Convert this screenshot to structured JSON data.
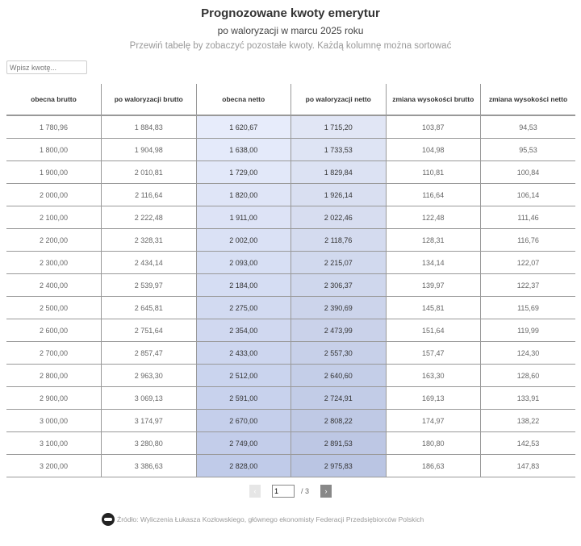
{
  "header": {
    "title": "Prognozowane kwoty emerytur",
    "subtitle": "po waloryzacji w marcu 2025 roku",
    "note": "Przewiń tabelę by zobaczyć pozostałe kwoty. Każdą kolumnę można sortować"
  },
  "search": {
    "placeholder": "Wpisz kwotę..."
  },
  "table": {
    "columns": [
      "obecna brutto",
      "po waloryzacji brutto",
      "obecna netto",
      "po waloryzacji netto",
      "zmiana wysokości brutto",
      "zmiana wysokości netto"
    ],
    "highlight_colors": {
      "top": "#e7ecfb",
      "bottom": "#c0cbe9"
    },
    "rows": [
      [
        "1 780,96",
        "1 884,83",
        "1 620,67",
        "1 715,20",
        "103,87",
        "94,53"
      ],
      [
        "1 800,00",
        "1 904,98",
        "1 638,00",
        "1 733,53",
        "104,98",
        "95,53"
      ],
      [
        "1 900,00",
        "2 010,81",
        "1 729,00",
        "1 829,84",
        "110,81",
        "100,84"
      ],
      [
        "2 000,00",
        "2 116,64",
        "1 820,00",
        "1 926,14",
        "116,64",
        "106,14"
      ],
      [
        "2 100,00",
        "2 222,48",
        "1 911,00",
        "2 022,46",
        "122,48",
        "111,46"
      ],
      [
        "2 200,00",
        "2 328,31",
        "2 002,00",
        "2 118,76",
        "128,31",
        "116,76"
      ],
      [
        "2 300,00",
        "2 434,14",
        "2 093,00",
        "2 215,07",
        "134,14",
        "122,07"
      ],
      [
        "2 400,00",
        "2 539,97",
        "2 184,00",
        "2 306,37",
        "139,97",
        "122,37"
      ],
      [
        "2 500,00",
        "2 645,81",
        "2 275,00",
        "2 390,69",
        "145,81",
        "115,69"
      ],
      [
        "2 600,00",
        "2 751,64",
        "2 354,00",
        "2 473,99",
        "151,64",
        "119,99"
      ],
      [
        "2 700,00",
        "2 857,47",
        "2 433,00",
        "2 557,30",
        "157,47",
        "124,30"
      ],
      [
        "2 800,00",
        "2 963,30",
        "2 512,00",
        "2 640,60",
        "163,30",
        "128,60"
      ],
      [
        "2 900,00",
        "3 069,13",
        "2 591,00",
        "2 724,91",
        "169,13",
        "133,91"
      ],
      [
        "3 000,00",
        "3 174,97",
        "2 670,00",
        "2 808,22",
        "174,97",
        "138,22"
      ],
      [
        "3 100,00",
        "3 280,80",
        "2 749,00",
        "2 891,53",
        "180,80",
        "142,53"
      ],
      [
        "3 200,00",
        "3 386,63",
        "2 828,00",
        "2 975,83",
        "186,63",
        "147,83"
      ]
    ]
  },
  "pagination": {
    "prev_icon": "chevron-left",
    "next_icon": "chevron-right",
    "prev": "‹",
    "next": "›",
    "current": "1",
    "total": "/ 3"
  },
  "footer": {
    "source": "Źródło: Wyliczenia Łukasza Kozłowskiego, głównego ekonomisty Federacji Przedsiębiorców Polskich"
  }
}
